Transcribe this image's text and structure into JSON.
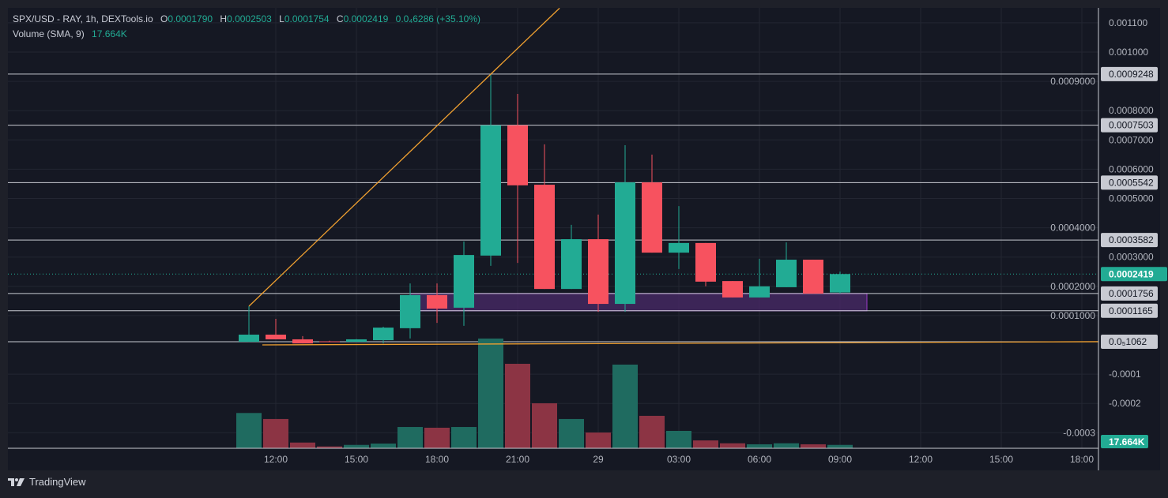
{
  "legend": {
    "symbol": "SPX/USD - RAY, 1h, DEXTools.io",
    "o_label": "O",
    "o": "0.0001790",
    "h_label": "H",
    "h": "0.0002503",
    "l_label": "L",
    "l": "0.0001754",
    "c_label": "C",
    "c": "0.0002419",
    "change": "0.0₄6286 (+35.10%)",
    "volume_label": "Volume (SMA, 9)",
    "volume_value": "17.664K"
  },
  "footer": {
    "brand": "TradingView",
    "logo_icon": "tradingview-logo-icon"
  },
  "colors": {
    "up": "#22ab94",
    "down": "#f7525f",
    "up_vol": "#1f6b60",
    "down_vol": "#8c3444",
    "trendline": "#f0a030",
    "zone": "#4a2a6a",
    "zone_border": "#9c3cc8",
    "level_line": "#c8cad2",
    "background": "#151823"
  },
  "chart_data": {
    "type": "candlestick",
    "interval": "1h",
    "ylim": [
      -0.00033,
      0.00115
    ],
    "y_ticks": [
      "0.001100",
      "0.001000",
      "0.0009000",
      "0.0008000",
      "0.0007000",
      "0.0006000",
      "0.0005000",
      "0.0004000",
      "0.0003000",
      "0.0002000",
      "0.0001000",
      "-0.0001",
      "-0.0002",
      "-0.0003"
    ],
    "y_tick_values": [
      0.0011,
      0.001,
      0.0009,
      0.0008,
      0.0007,
      0.0006,
      0.0005,
      0.0004,
      0.0003,
      0.0002,
      0.0001,
      -0.0001,
      -0.0002,
      -0.0003
    ],
    "x_ticks": [
      "12:00",
      "15:00",
      "18:00",
      "21:00",
      "29",
      "03:00",
      "06:00",
      "09:00",
      "12:00",
      "15:00",
      "18:00"
    ],
    "x_tick_hours": [
      12,
      15,
      18,
      21,
      24,
      27,
      30,
      33,
      36,
      39,
      42
    ],
    "grid": true,
    "candles": [
      {
        "t": 11,
        "o": 1.06e-05,
        "h": 0.000132,
        "l": 1.06e-05,
        "c": 3.5e-05
      },
      {
        "t": 12,
        "o": 3.5e-05,
        "h": 8.9e-05,
        "l": 1.9e-05,
        "c": 1.9e-05
      },
      {
        "t": 13,
        "o": 1.9e-05,
        "h": 3e-05,
        "l": 5e-06,
        "c": 5e-06
      },
      {
        "t": 14,
        "o": 1.2e-05,
        "h": 1.4e-05,
        "l": 1.06e-05,
        "c": 1.06e-05
      },
      {
        "t": 15,
        "o": 1.06e-05,
        "h": 2e-05,
        "l": 1.06e-05,
        "c": 1.9e-05
      },
      {
        "t": 16,
        "o": 1.6e-05,
        "h": 6.2e-05,
        "l": 5e-06,
        "c": 5.9e-05
      },
      {
        "t": 17,
        "o": 5.7e-05,
        "h": 0.00021,
        "l": 2.2e-05,
        "c": 0.00017
      },
      {
        "t": 18,
        "o": 0.00017,
        "h": 0.00021,
        "l": 7.5e-05,
        "c": 0.000124
      },
      {
        "t": 19,
        "o": 0.000127,
        "h": 0.000353,
        "l": 6.5e-05,
        "c": 0.000307
      },
      {
        "t": 20,
        "o": 0.000305,
        "h": 0.0009248,
        "l": 0.00027,
        "c": 0.00075
      },
      {
        "t": 21,
        "o": 0.00075,
        "h": 0.000857,
        "l": 0.00028,
        "c": 0.000545
      },
      {
        "t": 22,
        "o": 0.000547,
        "h": 0.000685,
        "l": 0.000191,
        "c": 0.000191
      },
      {
        "t": 23,
        "o": 0.000191,
        "h": 0.00041,
        "l": 0.000191,
        "c": 0.000361
      },
      {
        "t": 24,
        "o": 0.000361,
        "h": 0.000445,
        "l": 0.000113,
        "c": 0.00014
      },
      {
        "t": 25,
        "o": 0.00014,
        "h": 0.000682,
        "l": 0.000113,
        "c": 0.000555
      },
      {
        "t": 26,
        "o": 0.000555,
        "h": 0.00065,
        "l": 0.000315,
        "c": 0.000315
      },
      {
        "t": 27,
        "o": 0.000315,
        "h": 0.000474,
        "l": 0.000259,
        "c": 0.000348
      },
      {
        "t": 28,
        "o": 0.000348,
        "h": 0.000348,
        "l": 0.0002,
        "c": 0.000216
      },
      {
        "t": 29,
        "o": 0.000218,
        "h": 0.000218,
        "l": 0.000162,
        "c": 0.000162
      },
      {
        "t": 30,
        "o": 0.000162,
        "h": 0.000294,
        "l": 0.000162,
        "c": 0.0002
      },
      {
        "t": 31,
        "o": 0.000197,
        "h": 0.00035,
        "l": 0.000197,
        "c": 0.000291
      },
      {
        "t": 32,
        "o": 0.000291,
        "h": 0.000291,
        "l": 0.000175,
        "c": 0.000175
      },
      {
        "t": 33,
        "o": 0.000179,
        "h": 0.0002503,
        "l": 0.0001754,
        "c": 0.0002419
      }
    ],
    "volume_k": [
      34.5,
      28.6,
      5.6,
      1.8,
      3.3,
      4.6,
      20.8,
      20.1,
      20.8,
      107.3,
      82.6,
      44,
      28.6,
      15.4,
      81.8,
      31.7,
      17,
      7.7,
      4.9,
      3.9,
      4.9,
      3.9,
      3.3
    ],
    "volume_sma_label": "17.664K",
    "last_price_label": "0.0002419",
    "horizontal_levels": [
      {
        "value": 0.0009248,
        "label": "0.0009248"
      },
      {
        "value": 0.0007503,
        "label": "0.0007503"
      },
      {
        "value": 0.0005542,
        "label": "0.0005542"
      },
      {
        "value": 0.0003582,
        "label": "0.0003582"
      },
      {
        "value": 0.0001756,
        "label": "0.0001756"
      },
      {
        "value": 0.0001165,
        "label": "0.0001165"
      },
      {
        "value": 1.062e-05,
        "label": "0.0₅1062"
      }
    ],
    "zone": {
      "from_hour": 17,
      "to_hour": 34,
      "low": 0.0001165,
      "high": 0.0001756
    },
    "trendlines": [
      {
        "from": {
          "t": 11,
          "v": 0.000132
        },
        "to": {
          "t": 22.56,
          "v": 0.00115
        }
      },
      {
        "from": {
          "t": 11.5,
          "v": 0.0
        },
        "to": {
          "t": 43,
          "v": 1.1e-05
        }
      }
    ]
  }
}
